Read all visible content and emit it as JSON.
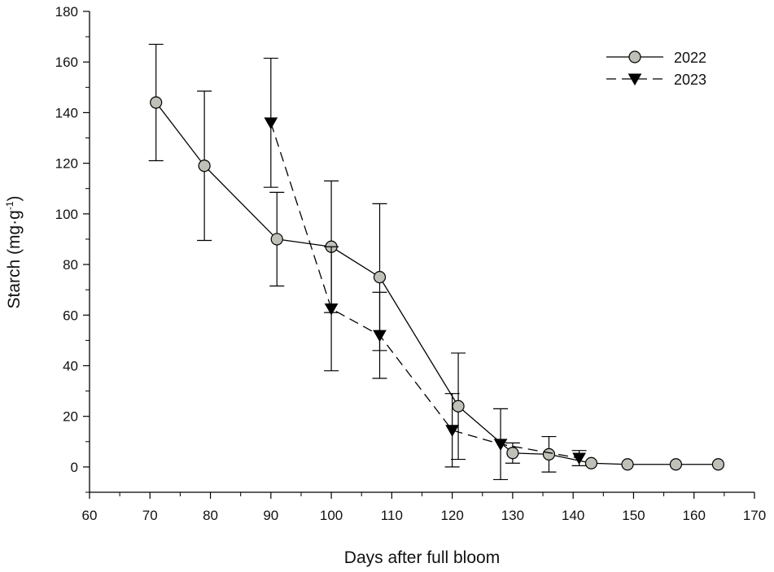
{
  "chart_data": {
    "type": "line",
    "title": "",
    "xlabel": "Days after full bloom",
    "ylabel_main": "Starch (mg·g",
    "ylabel_sup": "-1",
    "ylabel_close": ")",
    "xlim": [
      60,
      170
    ],
    "ylim": [
      -10,
      180
    ],
    "x_ticks": [
      60,
      70,
      80,
      90,
      100,
      110,
      120,
      130,
      140,
      150,
      160,
      170
    ],
    "y_ticks": [
      0,
      20,
      40,
      60,
      80,
      100,
      120,
      140,
      160,
      180
    ],
    "x_minor_step": 5,
    "y_minor_step": 10,
    "grid": false,
    "legend_position": "top-right",
    "series": [
      {
        "name": "2022",
        "marker": "circle",
        "line": "solid",
        "marker_fill": "#bfc0b8",
        "x": [
          71,
          79,
          91,
          100,
          108,
          121,
          130,
          136,
          143,
          149,
          157,
          164
        ],
        "y": [
          144,
          119,
          90,
          87,
          75,
          24,
          5.5,
          5,
          1.5,
          1,
          1,
          1
        ],
        "err": [
          23,
          29.5,
          18.5,
          26,
          29,
          21,
          4,
          7,
          0,
          0,
          0,
          0
        ]
      },
      {
        "name": "2023",
        "marker": "triangle-down",
        "line": "dashed",
        "marker_fill": "#000000",
        "x": [
          90,
          100,
          108,
          120,
          128,
          141
        ],
        "y": [
          136,
          62.5,
          52,
          14.5,
          9,
          3.5
        ],
        "err": [
          25.5,
          24.5,
          17,
          14.5,
          14,
          3
        ]
      }
    ]
  }
}
